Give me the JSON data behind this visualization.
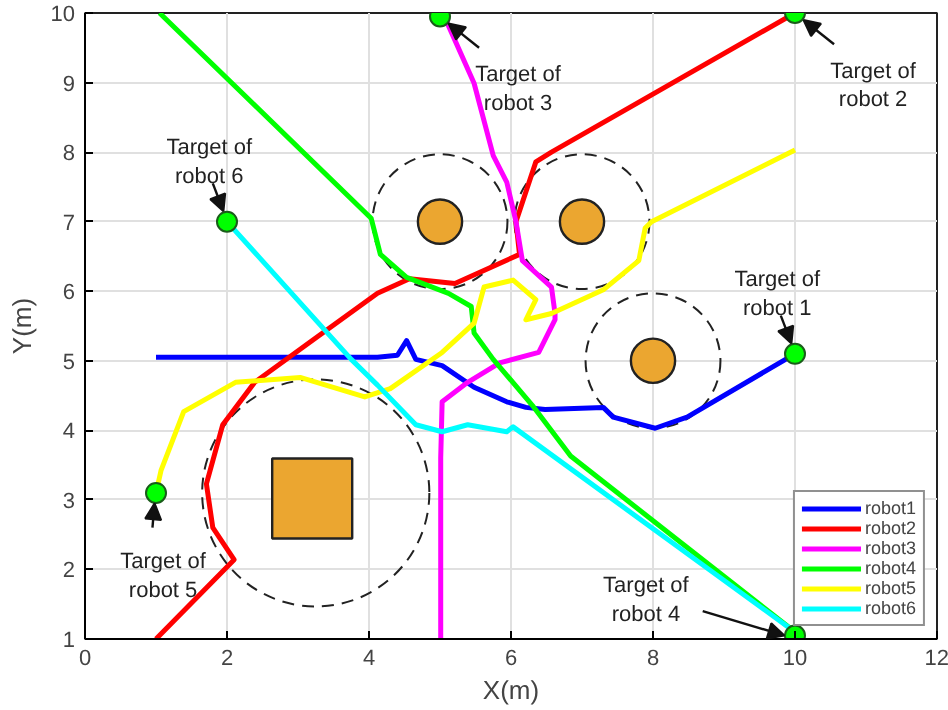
{
  "chart_data": {
    "type": "line",
    "xlabel": "X(m)",
    "ylabel": "Y(m)",
    "xlim": [
      0,
      12
    ],
    "ylim": [
      1,
      10
    ],
    "xticks": [
      0,
      2,
      4,
      6,
      8,
      10,
      12
    ],
    "yticks": [
      1,
      2,
      3,
      4,
      5,
      6,
      7,
      8,
      9,
      10
    ],
    "grid": true,
    "legend": "bottom right",
    "line_style": "solid",
    "series": [
      {
        "name": "robot1",
        "color": "#0000ff",
        "marker": "none",
        "x": [
          1,
          4.12,
          4.4,
          4.53,
          4.66,
          5.03,
          5.48,
          5.94,
          6.21,
          6.48,
          7.3,
          7.44,
          8.03,
          8.48,
          10
        ],
        "values": [
          5.05,
          5.05,
          5.08,
          5.29,
          5.02,
          4.93,
          4.62,
          4.41,
          4.33,
          4.3,
          4.33,
          4.19,
          4.03,
          4.19,
          5.1
        ]
      },
      {
        "name": "robot2",
        "color": "#ff0000",
        "marker": "none",
        "x": [
          1,
          2.1,
          1.8,
          1.71,
          1.94,
          2.39,
          3.21,
          4.12,
          4.57,
          5.21,
          6.12,
          6.07,
          6.35,
          6.57,
          10
        ],
        "values": [
          1,
          2.14,
          2.6,
          3.23,
          4.08,
          4.69,
          5.3,
          5.97,
          6.18,
          6.11,
          6.53,
          7.0,
          7.86,
          8.0,
          10
        ]
      },
      {
        "name": "robot3",
        "color": "#ff00ff",
        "marker": "none",
        "x": [
          5.07,
          5.48,
          5.75,
          5.94,
          6.07,
          6.16,
          6.57,
          6.62,
          6.62,
          6.39,
          5.84,
          5.39,
          5.03,
          5.01,
          5.01
        ],
        "values": [
          9.93,
          8.99,
          7.95,
          7.57,
          7.0,
          6.44,
          6.06,
          5.68,
          5.59,
          5.12,
          4.97,
          4.69,
          4.41,
          3.61,
          1
        ]
      },
      {
        "name": "robot4",
        "color": "#00ff00",
        "marker": "none",
        "x": [
          1.05,
          4.03,
          4.16,
          4.53,
          5.12,
          5.44,
          5.48,
          5.75,
          6.3,
          6.84,
          10
        ],
        "values": [
          10,
          7.05,
          6.53,
          6.2,
          5.97,
          5.78,
          5.4,
          5.02,
          4.36,
          3.63,
          1.1
        ]
      },
      {
        "name": "robot5",
        "color": "#ffff00",
        "marker": "none",
        "x": [
          1,
          1.07,
          1.39,
          2.12,
          3.03,
          3.94,
          4.3,
          5.03,
          5.48,
          5.62,
          6.03,
          6.35,
          6.21,
          6.57,
          7.3,
          7.8,
          7.89,
          7.98,
          10
        ],
        "values": [
          3.1,
          3.42,
          4.27,
          4.69,
          4.76,
          4.48,
          4.6,
          5.12,
          5.54,
          6.06,
          6.16,
          5.88,
          5.59,
          5.68,
          6.02,
          6.44,
          6.91,
          7.0,
          8.03
        ]
      },
      {
        "name": "robot6",
        "color": "#00ffff",
        "marker": "none",
        "x": [
          2,
          3.75,
          4.12,
          4.66,
          5.03,
          5.39,
          5.94,
          6.03,
          10
        ],
        "values": [
          7,
          5.02,
          4.65,
          4.08,
          3.98,
          4.08,
          3.98,
          4.05,
          1.1
        ]
      },
      {
        "type": "scatter",
        "color": "#00ff00",
        "marker": "circle",
        "x": [
          10,
          10,
          5,
          10,
          1,
          2
        ],
        "values": [
          5.1,
          10,
          9.95,
          1.05,
          3.1,
          7
        ]
      },
      {
        "type": "bubble",
        "color": "#eba630",
        "marker": "circle",
        "x": [
          5,
          7,
          8
        ],
        "values": [
          7,
          7,
          5
        ],
        "sizes": [
          0.24,
          0.24,
          0.24
        ]
      },
      {
        "type": "bubble",
        "color": "#eba630",
        "marker": "square",
        "x": [
          3.2
        ],
        "values": [
          3.02
        ],
        "sizes": [
          1
        ]
      }
    ],
    "annotations": [
      {
        "text": "Target of\nrobot 1",
        "x": 10,
        "y": 5.1
      },
      {
        "text": "Target of\nrobot 2",
        "x": 10,
        "y": 10
      },
      {
        "text": "Target of\nrobot 3",
        "x": 5,
        "y": 9.95
      },
      {
        "text": "Target of\nrobot 4",
        "x": 10,
        "y": 1.05
      },
      {
        "text": "Target of\nrobot 5",
        "x": 1,
        "y": 3.1
      },
      {
        "text": "Target of\nrobot 6",
        "x": 2,
        "y": 7
      }
    ]
  }
}
